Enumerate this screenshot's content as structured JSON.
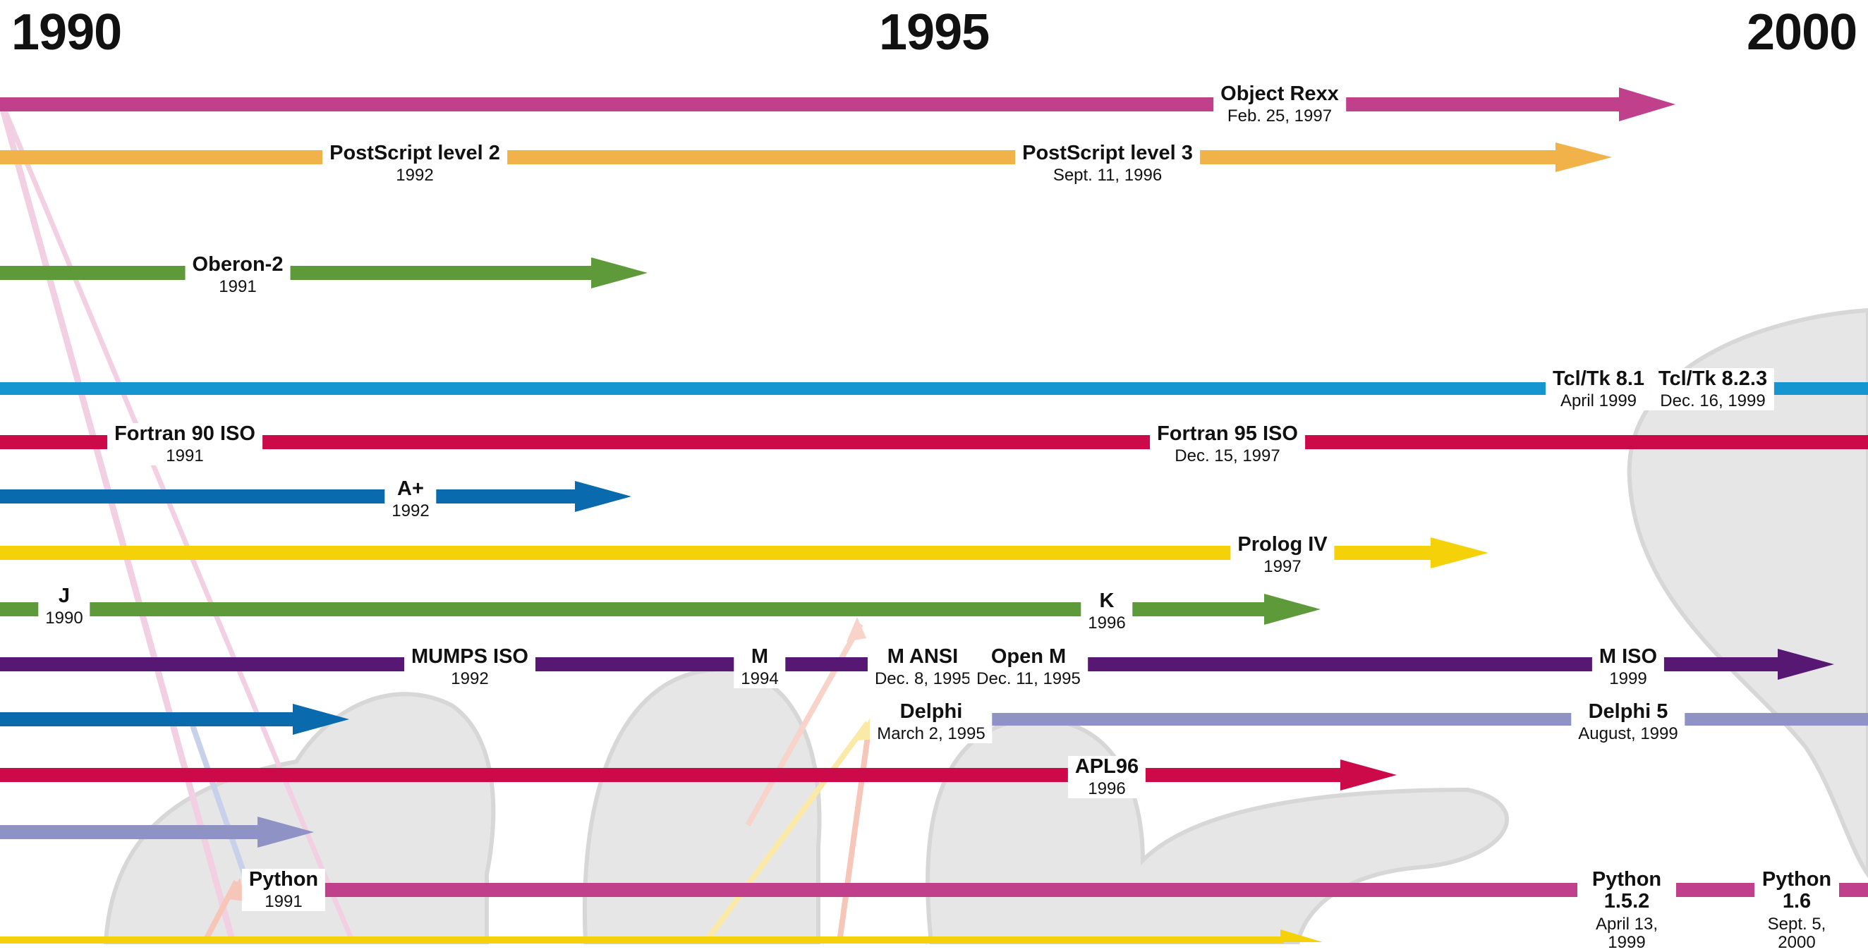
{
  "years": [
    "1990",
    "1995",
    "2000"
  ],
  "colors": {
    "magenta": "#c0408b",
    "orange": "#f2b24a",
    "green": "#5f9a3a",
    "cyan": "#1596d1",
    "crimson": "#cc0a4a",
    "blue": "#0a6aae",
    "yellow": "#f5d10a",
    "purple": "#561872",
    "lavender": "#8f92c4"
  },
  "labels": {
    "object_rexx": {
      "name": "Object Rexx",
      "date": "Feb. 25, 1997"
    },
    "ps2": {
      "name": "PostScript level 2",
      "date": "1992"
    },
    "ps3": {
      "name": "PostScript level 3",
      "date": "Sept. 11, 1996"
    },
    "oberon2": {
      "name": "Oberon-2",
      "date": "1991"
    },
    "tcl81": {
      "name": "Tcl/Tk 8.1",
      "date": "April 1999"
    },
    "tcl823": {
      "name": "Tcl/Tk 8.2.3",
      "date": "Dec. 16, 1999"
    },
    "f90": {
      "name": "Fortran 90 ISO",
      "date": "1991"
    },
    "f95": {
      "name": "Fortran 95 ISO",
      "date": "Dec. 15, 1997"
    },
    "aplus": {
      "name": "A+",
      "date": "1992"
    },
    "prolog4": {
      "name": "Prolog IV",
      "date": "1997"
    },
    "j": {
      "name": "J",
      "date": "1990"
    },
    "k": {
      "name": "K",
      "date": "1996"
    },
    "mumps": {
      "name": "MUMPS ISO",
      "date": "1992"
    },
    "m": {
      "name": "M",
      "date": "1994"
    },
    "mansi": {
      "name": "M ANSI",
      "date": "Dec. 8, 1995"
    },
    "openm": {
      "name": "Open M",
      "date": "Dec. 11, 1995"
    },
    "miso": {
      "name": "M ISO",
      "date": "1999"
    },
    "delphi": {
      "name": "Delphi",
      "date": "March 2, 1995"
    },
    "delphi5": {
      "name": "Delphi 5",
      "date": "August, 1999"
    },
    "apl96": {
      "name": "APL96",
      "date": "1996"
    },
    "python": {
      "name": "Python",
      "date": "1991"
    },
    "py152": {
      "name": "Python 1.5.2",
      "date": "April 13, 1999"
    },
    "py16": {
      "name": "Python 1.6",
      "date": "Sept. 5, 2000"
    }
  }
}
